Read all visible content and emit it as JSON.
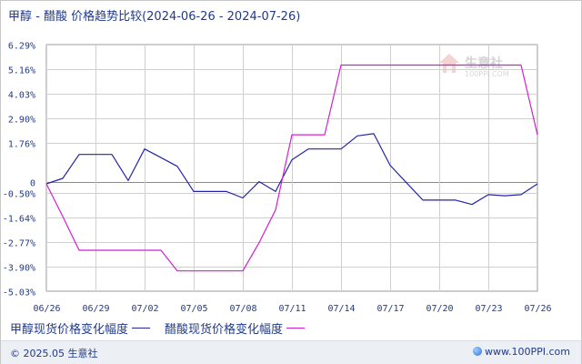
{
  "title": "甲醇 - 醋酸 价格趋势比较(2024-06-26 - 2024-07-26)",
  "watermark": {
    "name": "生意社",
    "url": "100PPI.COM",
    "icon": "house-logo-icon"
  },
  "footer": {
    "copyright": "© 2025.05 生意社",
    "site": "www.100PPI.com",
    "icon": "globe-icon"
  },
  "colors": {
    "series_1": "#2424a8",
    "series_2": "#d21fd2",
    "grid": "#cfcfcf",
    "zero_line": "#8a8a8a",
    "axis_text": "#1f3a8a"
  },
  "chart_data": {
    "type": "line",
    "y_ticks": [
      "6.29%",
      "5.16%",
      "4.03%",
      "2.90%",
      "1.76%",
      "0",
      "-0.50%",
      "-1.64%",
      "-2.77%",
      "-3.90%",
      "-5.03%"
    ],
    "ylim": [
      -5.03,
      6.29
    ],
    "x_ticks": [
      "06/26",
      "06/29",
      "07/02",
      "07/05",
      "07/08",
      "07/11",
      "07/14",
      "07/17",
      "07/20",
      "07/23",
      "07/26"
    ],
    "x": [
      "06/26",
      "06/27",
      "06/28",
      "06/29",
      "06/30",
      "07/01",
      "07/02",
      "07/03",
      "07/04",
      "07/05",
      "07/06",
      "07/07",
      "07/08",
      "07/09",
      "07/10",
      "07/11",
      "07/12",
      "07/13",
      "07/14",
      "07/15",
      "07/16",
      "07/17",
      "07/18",
      "07/19",
      "07/20",
      "07/21",
      "07/22",
      "07/23",
      "07/24",
      "07/25",
      "07/26"
    ],
    "series": [
      {
        "name": "甲醇现货价格变化幅度",
        "values": [
          -0.1,
          0.15,
          1.25,
          1.25,
          1.25,
          0.05,
          1.5,
          1.1,
          0.7,
          -0.45,
          -0.45,
          -0.45,
          -0.75,
          0.0,
          -0.45,
          1.0,
          1.5,
          1.5,
          1.5,
          2.1,
          2.2,
          0.75,
          -0.05,
          -0.85,
          -0.85,
          -0.85,
          -1.05,
          -0.6,
          -0.65,
          -0.6,
          -0.1
        ]
      },
      {
        "name": "醋酸现货价格变化幅度",
        "values": [
          -0.1,
          -1.6,
          -3.15,
          -3.15,
          -3.15,
          -3.15,
          -3.15,
          -3.15,
          -4.1,
          -4.1,
          -4.1,
          -4.1,
          -4.1,
          -2.8,
          -1.3,
          2.15,
          2.15,
          2.15,
          5.35,
          5.35,
          5.35,
          5.35,
          5.35,
          5.35,
          5.35,
          5.35,
          5.35,
          5.35,
          5.35,
          5.35,
          2.15
        ]
      }
    ],
    "grid": true,
    "legend_position": "bottom-left"
  }
}
